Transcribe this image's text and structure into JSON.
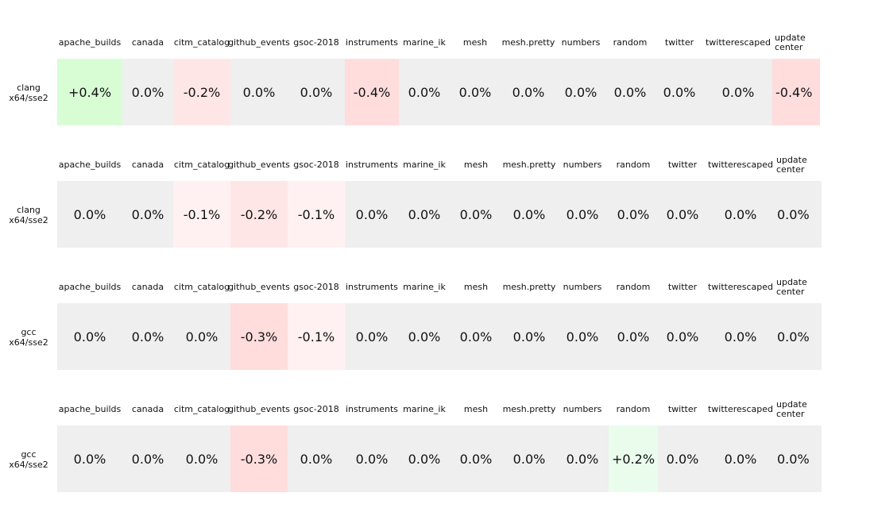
{
  "chart_data": {
    "type": "table",
    "columns": [
      "apache_builds",
      "canada",
      "citm_catalog",
      "github_events",
      "gsoc-2018",
      "instruments",
      "marine_ik",
      "mesh",
      "mesh.pretty",
      "numbers",
      "random",
      "twitter",
      "twitterescaped",
      "update-center"
    ],
    "column_labels": [
      "apache_builds",
      "canada",
      "citm_catalog",
      "github_events",
      "gsoc-2018",
      "instruments",
      "marine_ik",
      "mesh",
      "mesh.pretty",
      "numbers",
      "random",
      "twitter",
      "twitterescaped",
      "update\ncenter"
    ],
    "unit": "%",
    "rows": [
      {
        "label_line1": "clang",
        "label_line2": "x64/sse2",
        "values": [
          0.4,
          0.0,
          -0.2,
          0.0,
          0.0,
          -0.4,
          0.0,
          0.0,
          0.0,
          0.0,
          0.0,
          0.0,
          0.0,
          -0.4
        ],
        "display": [
          "+0.4%",
          "0.0%",
          "-0.2%",
          "0.0%",
          "0.0%",
          "-0.4%",
          "0.0%",
          "0.0%",
          "0.0%",
          "0.0%",
          "0.0%",
          "0.0%",
          "0.0%",
          "-0.4%"
        ]
      },
      {
        "label_line1": "clang",
        "label_line2": "x64/sse2",
        "values": [
          0.0,
          0.0,
          -0.1,
          -0.2,
          -0.1,
          0.0,
          0.0,
          0.0,
          0.0,
          0.0,
          0.0,
          0.0,
          0.0,
          0.0
        ],
        "display": [
          "0.0%",
          "0.0%",
          "-0.1%",
          "-0.2%",
          "-0.1%",
          "0.0%",
          "0.0%",
          "0.0%",
          "0.0%",
          "0.0%",
          "0.0%",
          "0.0%",
          "0.0%",
          "0.0%"
        ]
      },
      {
        "label_line1": "gcc",
        "label_line2": "x64/sse2",
        "values": [
          0.0,
          0.0,
          0.0,
          -0.3,
          -0.1,
          0.0,
          0.0,
          0.0,
          0.0,
          0.0,
          0.0,
          0.0,
          0.0,
          0.0
        ],
        "display": [
          "0.0%",
          "0.0%",
          "0.0%",
          "-0.3%",
          "-0.1%",
          "0.0%",
          "0.0%",
          "0.0%",
          "0.0%",
          "0.0%",
          "0.0%",
          "0.0%",
          "0.0%",
          "0.0%"
        ]
      },
      {
        "label_line1": "gcc",
        "label_line2": "x64/sse2",
        "values": [
          0.0,
          0.0,
          0.0,
          -0.3,
          0.0,
          0.0,
          0.0,
          0.0,
          0.0,
          0.0,
          0.2,
          0.0,
          0.0,
          0.0
        ],
        "display": [
          "0.0%",
          "0.0%",
          "0.0%",
          "-0.3%",
          "0.0%",
          "0.0%",
          "0.0%",
          "0.0%",
          "0.0%",
          "0.0%",
          "+0.2%",
          "0.0%",
          "0.0%",
          "0.0%"
        ]
      }
    ],
    "colors": {
      "neutral": "#efefef",
      "positive_strong": "#d8fdd5",
      "positive_light": "#eafded",
      "negative_light": "#fff1f1",
      "negative_mid": "#ffe6e6",
      "negative_strong": "#ffdddd"
    }
  }
}
